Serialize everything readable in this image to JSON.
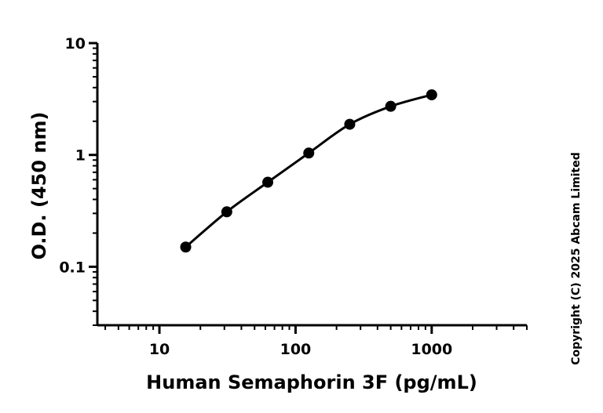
{
  "chart_data": {
    "type": "scatter",
    "title": "",
    "xlabel": "Human Semaphorin 3F (pg/mL)",
    "ylabel": "O.D. (450 nm)",
    "x_scale": "log",
    "y_scale": "log",
    "xlim": [
      3.5,
      5000
    ],
    "ylim": [
      0.03,
      10
    ],
    "x_ticks": [
      "10",
      "100",
      "1000"
    ],
    "y_ticks": [
      "10",
      "1",
      "0.1"
    ],
    "grid": false,
    "legend": "none",
    "series": [
      {
        "color": "#000000",
        "x": [
          15.6,
          31.25,
          62.5,
          125,
          250,
          500,
          1000
        ],
        "y": [
          0.15,
          0.31,
          0.57,
          1.04,
          1.88,
          2.72,
          3.45
        ],
        "fit_line": true
      }
    ]
  },
  "copyright": "Copyright (C) 2025 Abcam Limited"
}
